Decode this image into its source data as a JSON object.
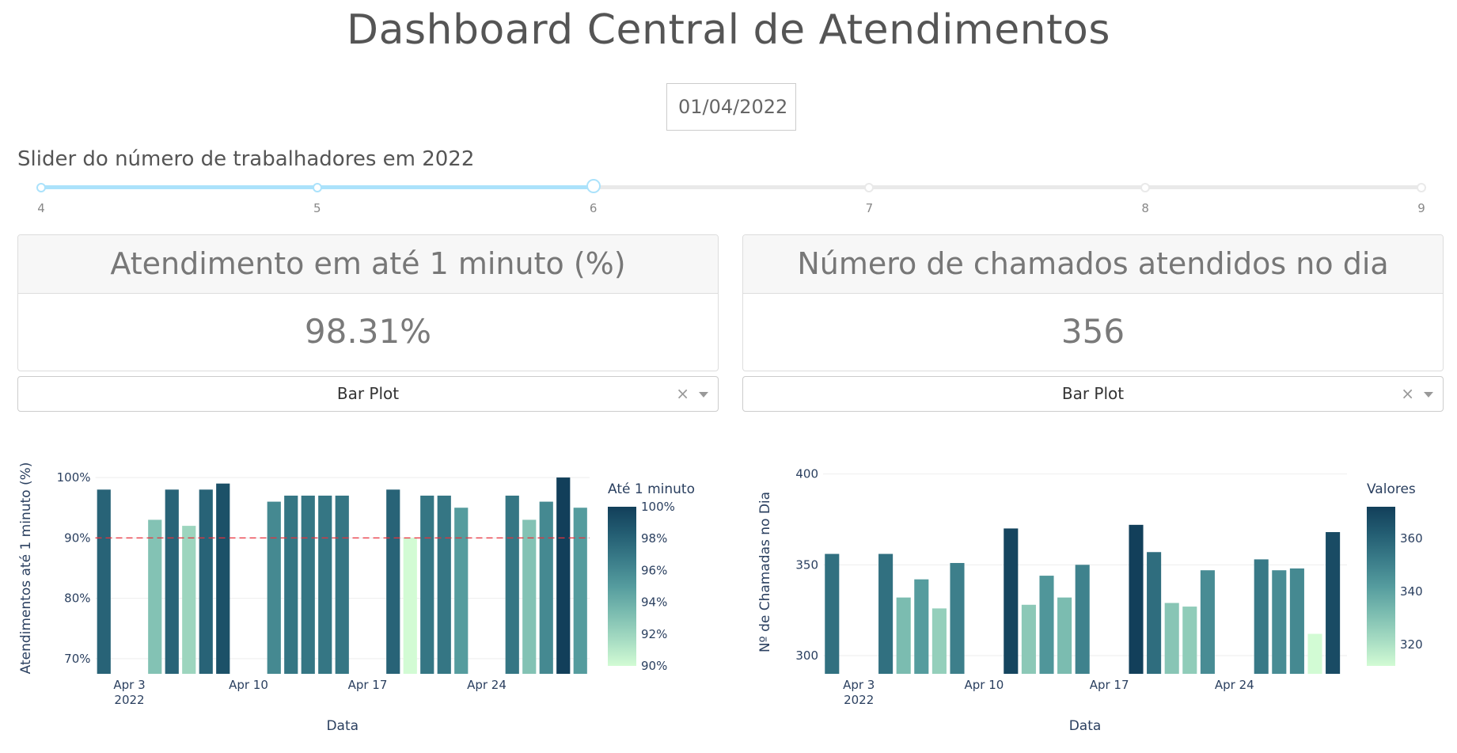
{
  "title": "Dashboard Central de Atendimentos",
  "date_picker": {
    "value": "01/04/2022"
  },
  "slider": {
    "label": "Slider do número de trabalhadores em 2022",
    "marks": [
      "4",
      "5",
      "6",
      "7",
      "8",
      "9"
    ],
    "min": 4,
    "max": 9,
    "value": 6
  },
  "card_left": {
    "header": "Atendimento em até 1 minuto (%)",
    "value": "98.31%"
  },
  "card_right": {
    "header": "Número de chamados atendidos no dia",
    "value": "356"
  },
  "dropdown_left": {
    "value": "Bar Plot",
    "clear": "×"
  },
  "dropdown_right": {
    "value": "Bar Plot",
    "clear": "×"
  },
  "colors": {
    "slider_accent": "#abe2fb",
    "target_line": "#e8313c"
  },
  "chart_data": [
    {
      "type": "bar",
      "xlabel": "Data",
      "ylabel": "Atendimentos até 1 minuto (%)",
      "x_ticks": [
        "Apr 3\n2022",
        "Apr 10",
        "Apr 17",
        "Apr 24"
      ],
      "y_ticks": [
        "70%",
        "80%",
        "90%",
        "100%"
      ],
      "ylim": [
        67.5,
        102.5
      ],
      "x": [
        "2022-04-01",
        "2022-04-04",
        "2022-04-05",
        "2022-04-06",
        "2022-04-07",
        "2022-04-08",
        "2022-04-11",
        "2022-04-12",
        "2022-04-13",
        "2022-04-14",
        "2022-04-15",
        "2022-04-18",
        "2022-04-19",
        "2022-04-20",
        "2022-04-21",
        "2022-04-22",
        "2022-04-25",
        "2022-04-26",
        "2022-04-27",
        "2022-04-28",
        "2022-04-29"
      ],
      "values": [
        98,
        93,
        98,
        92,
        98,
        99,
        96,
        97,
        97,
        97,
        97,
        98,
        90,
        97,
        97,
        95,
        97,
        93,
        96,
        100,
        95
      ],
      "reference_line": 90,
      "colorbar": {
        "title": "Até 1 minuto",
        "ticks": [
          "90%",
          "92%",
          "94%",
          "96%",
          "98%",
          "100%"
        ],
        "range": [
          90,
          100
        ]
      }
    },
    {
      "type": "bar",
      "xlabel": "Data",
      "ylabel": "Nº de Chamadas no Dia",
      "x_ticks": [
        "Apr 3\n2022",
        "Apr 10",
        "Apr 17",
        "Apr 24"
      ],
      "y_ticks": [
        "300",
        "350",
        "400"
      ],
      "ylim": [
        290,
        402
      ],
      "x": [
        "2022-04-01",
        "2022-04-04",
        "2022-04-05",
        "2022-04-06",
        "2022-04-07",
        "2022-04-08",
        "2022-04-11",
        "2022-04-12",
        "2022-04-13",
        "2022-04-14",
        "2022-04-15",
        "2022-04-18",
        "2022-04-19",
        "2022-04-20",
        "2022-04-21",
        "2022-04-22",
        "2022-04-25",
        "2022-04-26",
        "2022-04-27",
        "2022-04-28",
        "2022-04-29"
      ],
      "values": [
        356,
        356,
        332,
        342,
        326,
        351,
        370,
        328,
        344,
        332,
        350,
        372,
        357,
        329,
        327,
        347,
        353,
        347,
        348,
        312,
        368
      ],
      "colorbar": {
        "title": "Valores",
        "ticks": [
          "320",
          "340",
          "360"
        ],
        "range": [
          312,
          372
        ]
      }
    }
  ]
}
